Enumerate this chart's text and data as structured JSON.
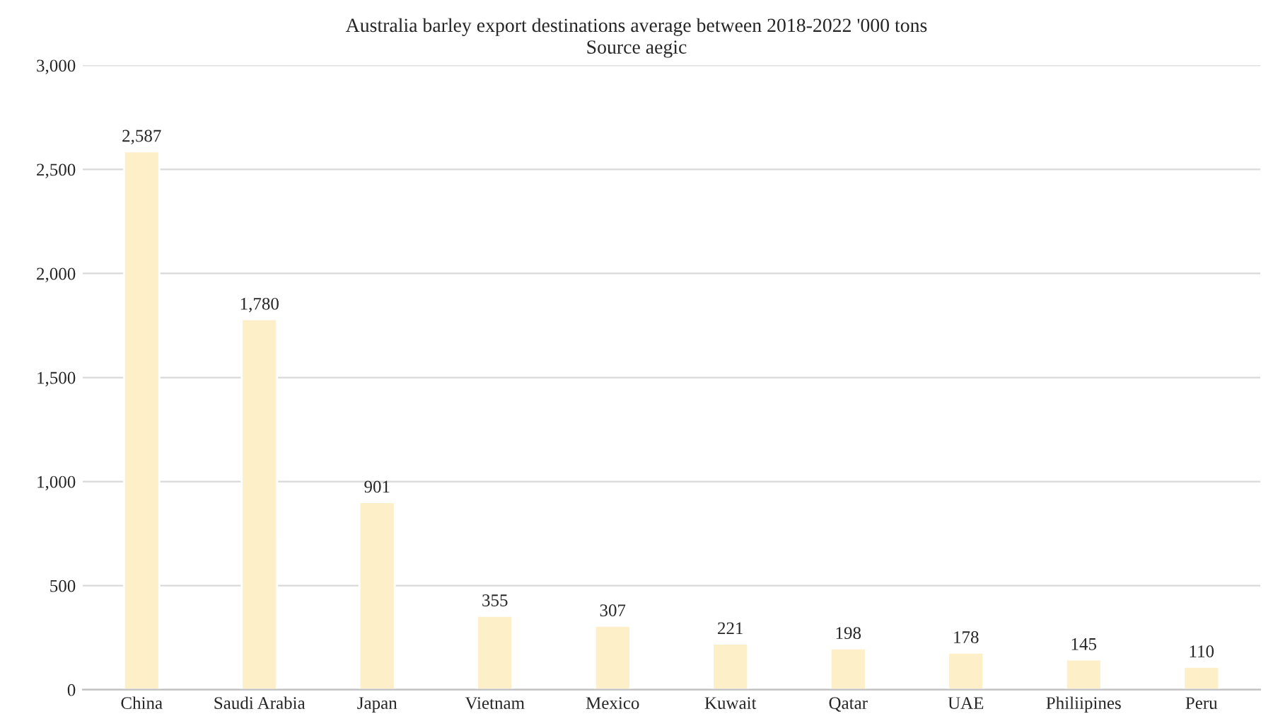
{
  "chart_data": {
    "type": "bar",
    "title": "Australia barley export destinations average between 2018-2022 '000 tons",
    "subtitle": "Source aegic",
    "categories": [
      "China",
      "Saudi Arabia",
      "Japan",
      "Vietnam",
      "Mexico",
      "Kuwait",
      "Qatar",
      "UAE",
      "Philiipines",
      "Peru"
    ],
    "values": [
      2587,
      1780,
      901,
      355,
      307,
      221,
      198,
      178,
      145,
      110
    ],
    "value_labels": [
      "2,587",
      "1,780",
      "901",
      "355",
      "307",
      "221",
      "198",
      "178",
      "145",
      "110"
    ],
    "color": "#fdefc8",
    "ylim": [
      0,
      3000
    ],
    "yticks": [
      0,
      {
        "value": 500,
        "label": "500"
      },
      {
        "value": 1000,
        "label": "1,000"
      },
      {
        "value": 1500,
        "label": "1,500"
      },
      {
        "value": 2000,
        "label": "2,000"
      },
      {
        "value": 2500,
        "label": "2,500"
      },
      {
        "value": 3000,
        "label": "3,000"
      }
    ],
    "grid": "y",
    "legend": false
  }
}
